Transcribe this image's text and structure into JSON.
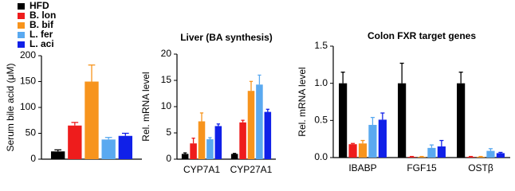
{
  "chart_data": [
    {
      "type": "bar",
      "ylabel": "Serum bile acid (μM)",
      "categories": [
        null
      ],
      "ylim": [
        0,
        200
      ],
      "yticks": [
        0,
        50,
        100,
        150,
        200
      ],
      "series": [
        {
          "name": "HFD",
          "color": "#000000",
          "values": [
            15
          ],
          "errors": [
            3
          ]
        },
        {
          "name": "B. lon",
          "color": "#ee1c1c",
          "values": [
            65
          ],
          "errors": [
            6
          ]
        },
        {
          "name": "B. bif",
          "color": "#f7941d",
          "values": [
            150
          ],
          "errors": [
            32
          ]
        },
        {
          "name": "L. fer",
          "color": "#5aa9f0",
          "values": [
            38
          ],
          "errors": [
            4
          ]
        },
        {
          "name": "L. aci",
          "color": "#1020e8",
          "values": [
            45
          ],
          "errors": [
            5
          ]
        }
      ]
    },
    {
      "type": "bar",
      "title": "Liver (BA synthesis)",
      "ylabel": "Rel. mRNA level",
      "categories": [
        "CYP7A1",
        "CYP27A1"
      ],
      "ylim": [
        0,
        20
      ],
      "yticks": [
        0,
        5,
        10,
        15,
        20
      ],
      "series": [
        {
          "color": "#000000",
          "values": [
            1,
            1
          ],
          "errors": [
            0.2,
            0.1
          ]
        },
        {
          "color": "#ee1c1c",
          "values": [
            3,
            7
          ],
          "errors": [
            1,
            0.4
          ]
        },
        {
          "color": "#f7941d",
          "values": [
            7.2,
            13
          ],
          "errors": [
            1.6,
            1.8
          ]
        },
        {
          "color": "#5aa9f0",
          "values": [
            3.8,
            14.2
          ],
          "errors": [
            0.3,
            1.8
          ]
        },
        {
          "color": "#1020e8",
          "values": [
            6.3,
            9
          ],
          "errors": [
            0.4,
            0.5
          ]
        }
      ]
    },
    {
      "type": "bar",
      "title": "Colon FXR target genes",
      "ylabel": "Rel. mRNA level",
      "categories": [
        "IBABP",
        "FGF15",
        "OSTβ"
      ],
      "ylim": [
        0,
        1.5
      ],
      "yticks": [
        {
          "value": 0,
          "label": "0.0"
        },
        0.5,
        {
          "value": 1,
          "label": "1.0"
        },
        1.5
      ],
      "series": [
        {
          "color": "#000000",
          "values": [
            1,
            1,
            1
          ],
          "errors": [
            0.15,
            0.27,
            0.15
          ]
        },
        {
          "color": "#ee1c1c",
          "values": [
            0.18,
            0.01,
            0.01
          ],
          "errors": [
            0.01,
            0.005,
            0.005
          ]
        },
        {
          "color": "#f7941d",
          "values": [
            0.19,
            0.01,
            0.01
          ],
          "errors": [
            0.04,
            0.005,
            0.005
          ]
        },
        {
          "color": "#5aa9f0",
          "values": [
            0.44,
            0.13,
            0.09
          ],
          "errors": [
            0.1,
            0.04,
            0.03
          ]
        },
        {
          "color": "#1020e8",
          "values": [
            0.51,
            0.15,
            0.06
          ],
          "errors": [
            0.09,
            0.08,
            0.01
          ]
        }
      ]
    }
  ]
}
